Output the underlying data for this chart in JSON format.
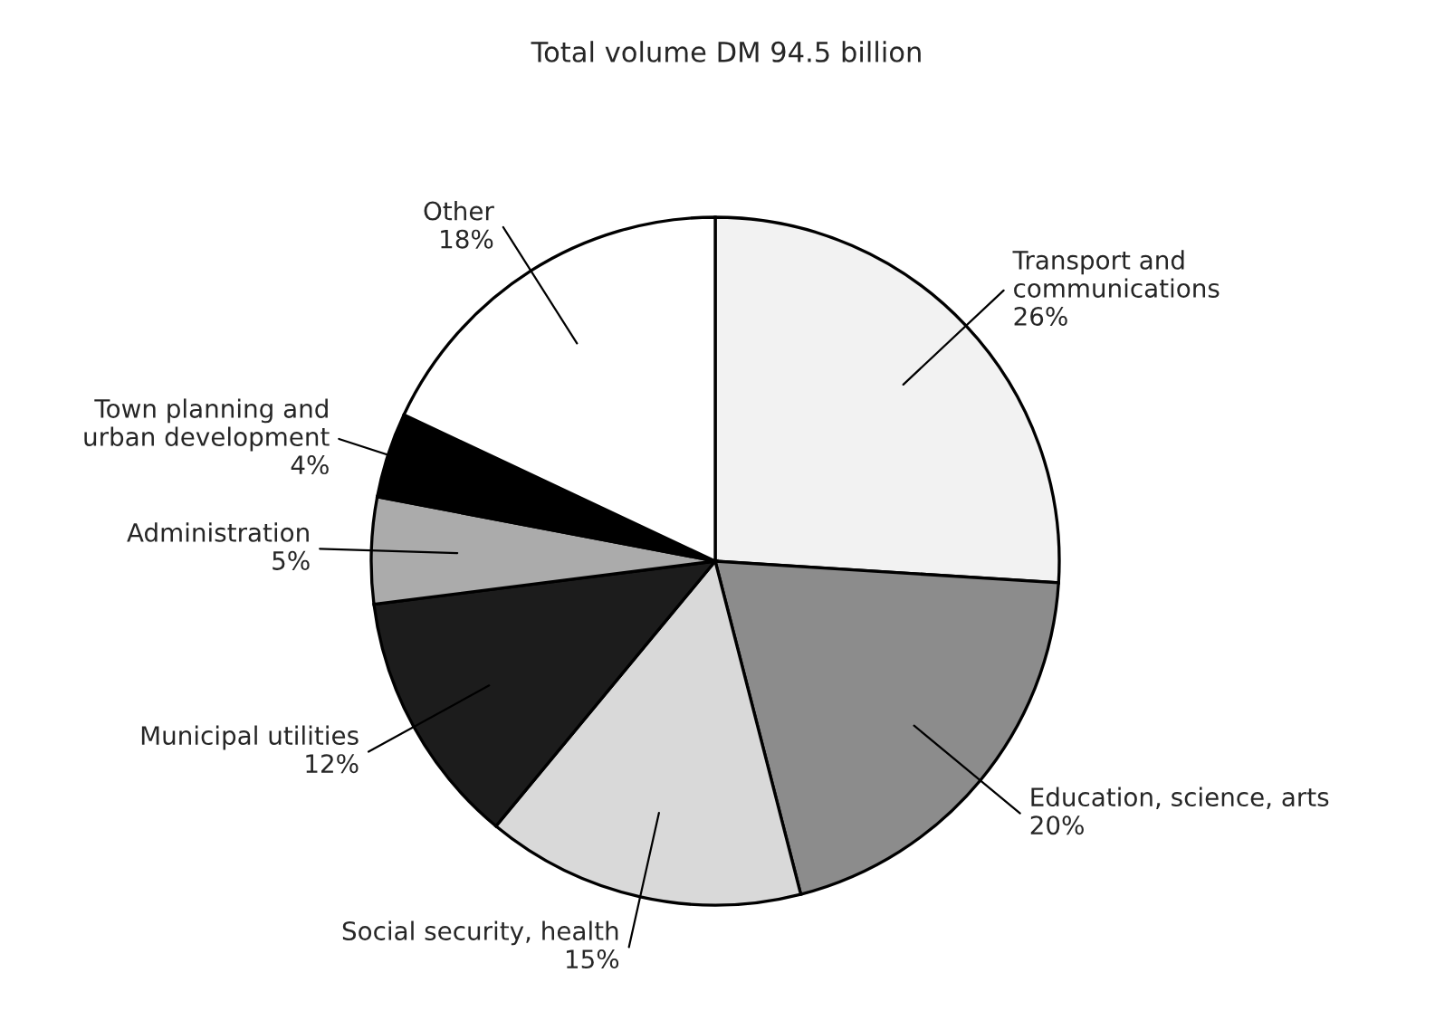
{
  "chart_data": {
    "type": "pie",
    "title": "Total volume DM 94.5 billion",
    "categories": [
      "Transport and\ncommunications",
      "Education, science, arts",
      "Social security, health",
      "Municipal utilities",
      "Administration",
      "Town planning and\nurban development",
      "Other"
    ],
    "values": [
      26,
      20,
      15,
      12,
      5,
      4,
      18
    ],
    "value_labels": [
      "26%",
      "20%",
      "15%",
      "12%",
      "5%",
      "4%",
      "18%"
    ],
    "colors": [
      "#f2f2f2",
      "#8c8c8c",
      "#d9d9d9",
      "#1c1c1c",
      "#ababab",
      "#000000",
      "#ffffff"
    ]
  }
}
